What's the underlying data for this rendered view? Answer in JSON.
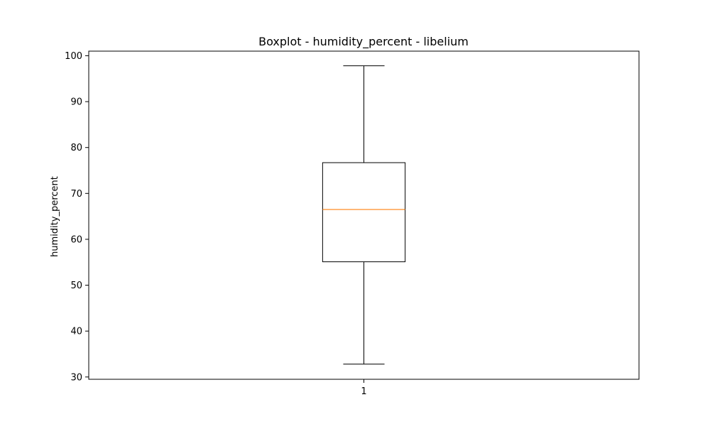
{
  "chart_data": {
    "type": "boxplot",
    "title": "Boxplot - humidity_percent - libelium",
    "xlabel": "",
    "ylabel": "humidity_percent",
    "categories": [
      "1"
    ],
    "boxes": [
      {
        "category": "1",
        "whisker_low": 32.8,
        "q1": 55.1,
        "median": 66.5,
        "q3": 76.7,
        "whisker_high": 97.8
      }
    ],
    "ylim": [
      29.5,
      101.0
    ],
    "yticks": [
      30,
      40,
      50,
      60,
      70,
      80,
      90,
      100
    ],
    "grid": false,
    "colors": {
      "box": "#000000",
      "median": "#ff7f0e",
      "axes": "#000000"
    }
  }
}
